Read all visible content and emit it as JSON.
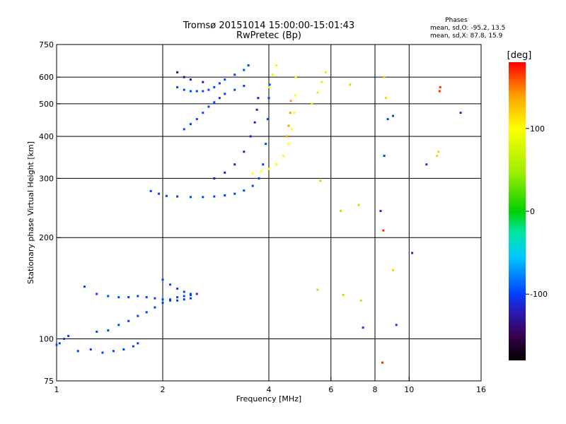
{
  "chart_data": {
    "type": "scatter",
    "title": "Tromsø 20151014 15:00:00-15:01:43",
    "subtitle": "RwPretec (Bp)",
    "stats": {
      "heading": "Phases",
      "line1": "mean, sd,O: -95.2, 13.5",
      "line2": "mean, sd,X:  87.8, 15.9"
    },
    "xlabel": "Frequency [MHz]",
    "ylabel": "Stationary phase Virtual Height [km]",
    "x_scale": "log",
    "y_scale": "log",
    "xlim": [
      1,
      16
    ],
    "ylim": [
      75,
      750
    ],
    "x_ticks": [
      {
        "value": 1,
        "label": "1"
      },
      {
        "value": 2,
        "label": "2"
      },
      {
        "value": 4,
        "label": "4"
      },
      {
        "value": 6,
        "label": "6"
      },
      {
        "value": 8,
        "label": "8"
      },
      {
        "value": 10,
        "label": "10"
      },
      {
        "value": 16,
        "label": "16"
      }
    ],
    "x_gridlines": [
      2,
      4,
      6,
      8,
      10
    ],
    "y_ticks": [
      {
        "value": 75,
        "label": "75"
      },
      {
        "value": 100,
        "label": "100"
      },
      {
        "value": 200,
        "label": "200"
      },
      {
        "value": 300,
        "label": "300"
      },
      {
        "value": 400,
        "label": "400"
      },
      {
        "value": 500,
        "label": "500"
      },
      {
        "value": 600,
        "label": "600"
      },
      {
        "value": 750,
        "label": "750"
      }
    ],
    "y_gridlines": [
      100,
      200,
      300,
      400,
      500,
      600
    ],
    "grid": true,
    "colorbar": {
      "label": "[deg]",
      "min": -180,
      "max": 180,
      "ticks": [
        {
          "value": 100,
          "label": "100"
        },
        {
          "value": 0,
          "label": "0"
        },
        {
          "value": -100,
          "label": "-100"
        }
      ],
      "stops": [
        {
          "value": -180,
          "color": "#000000"
        },
        {
          "value": -150,
          "color": "#3a004d"
        },
        {
          "value": -115,
          "color": "#2222cc"
        },
        {
          "value": -100,
          "color": "#0040ff"
        },
        {
          "value": -55,
          "color": "#00c8ff"
        },
        {
          "value": -25,
          "color": "#00e6a0"
        },
        {
          "value": 0,
          "color": "#00d000"
        },
        {
          "value": 45,
          "color": "#9aee00"
        },
        {
          "value": 100,
          "color": "#ffff00"
        },
        {
          "value": 140,
          "color": "#ffa000"
        },
        {
          "value": 180,
          "color": "#ff0000"
        }
      ]
    },
    "traces": [
      {
        "phase": -100,
        "points": [
          [
            1.0,
            96
          ],
          [
            1.02,
            97
          ],
          [
            1.05,
            100
          ],
          [
            1.08,
            102
          ]
        ]
      },
      {
        "phase": -100,
        "points": [
          [
            1.15,
            92
          ],
          [
            1.25,
            93
          ],
          [
            1.35,
            91
          ],
          [
            1.45,
            92
          ],
          [
            1.55,
            93
          ],
          [
            1.65,
            95
          ],
          [
            1.7,
            97
          ]
        ]
      },
      {
        "phase": -100,
        "points": [
          [
            1.3,
            105
          ],
          [
            1.4,
            106
          ],
          [
            1.5,
            110
          ],
          [
            1.6,
            113
          ],
          [
            1.7,
            117
          ],
          [
            1.8,
            120
          ],
          [
            1.9,
            124
          ],
          [
            2.0,
            128
          ],
          [
            2.1,
            131
          ],
          [
            2.2,
            133
          ],
          [
            2.3,
            134
          ],
          [
            2.4,
            135
          ],
          [
            2.5,
            136
          ]
        ]
      },
      {
        "phase": -100,
        "points": [
          [
            1.2,
            143
          ],
          [
            1.3,
            136
          ],
          [
            1.4,
            134
          ],
          [
            1.5,
            133
          ],
          [
            1.6,
            133
          ],
          [
            1.7,
            134
          ],
          [
            1.8,
            133
          ],
          [
            1.9,
            132
          ],
          [
            2.0,
            131
          ],
          [
            2.1,
            130
          ],
          [
            2.2,
            130
          ],
          [
            2.3,
            131
          ],
          [
            2.4,
            132
          ]
        ]
      },
      {
        "phase": -100,
        "points": [
          [
            2.0,
            150
          ],
          [
            2.1,
            145
          ],
          [
            2.2,
            141
          ],
          [
            2.3,
            138
          ],
          [
            2.4,
            136
          ]
        ]
      },
      {
        "phase": -100,
        "points": [
          [
            1.85,
            275
          ],
          [
            1.95,
            270
          ],
          [
            2.05,
            266
          ],
          [
            2.2,
            265
          ],
          [
            2.4,
            264
          ],
          [
            2.6,
            264
          ],
          [
            2.8,
            265
          ],
          [
            3.0,
            267
          ],
          [
            3.2,
            270
          ],
          [
            3.4,
            276
          ],
          [
            3.6,
            285
          ],
          [
            3.75,
            300
          ],
          [
            3.85,
            330
          ],
          [
            3.92,
            380
          ],
          [
            3.97,
            450
          ],
          [
            4.0,
            520
          ],
          [
            4.02,
            570
          ]
        ]
      },
      {
        "phase": -120,
        "points": [
          [
            2.8,
            300
          ],
          [
            3.0,
            312
          ],
          [
            3.2,
            330
          ],
          [
            3.4,
            360
          ],
          [
            3.55,
            400
          ],
          [
            3.65,
            440
          ],
          [
            3.7,
            480
          ],
          [
            3.73,
            520
          ]
        ]
      },
      {
        "phase": -100,
        "points": [
          [
            2.3,
            420
          ],
          [
            2.4,
            435
          ],
          [
            2.5,
            450
          ],
          [
            2.6,
            470
          ],
          [
            2.7,
            490
          ],
          [
            2.8,
            505
          ],
          [
            2.9,
            520
          ],
          [
            3.0,
            535
          ],
          [
            3.2,
            550
          ],
          [
            3.4,
            565
          ]
        ]
      },
      {
        "phase": -100,
        "points": [
          [
            2.2,
            560
          ],
          [
            2.3,
            550
          ],
          [
            2.4,
            545
          ],
          [
            2.5,
            545
          ],
          [
            2.6,
            545
          ],
          [
            2.7,
            550
          ],
          [
            2.8,
            560
          ],
          [
            2.9,
            575
          ],
          [
            3.0,
            590
          ],
          [
            3.2,
            610
          ],
          [
            3.4,
            630
          ],
          [
            3.5,
            650
          ]
        ]
      },
      {
        "phase": -130,
        "points": [
          [
            2.2,
            620
          ],
          [
            2.3,
            600
          ],
          [
            2.4,
            590
          ],
          [
            2.6,
            580
          ]
        ]
      },
      {
        "phase": 100,
        "points": [
          [
            3.6,
            310
          ],
          [
            3.8,
            315
          ],
          [
            4.0,
            320
          ],
          [
            4.2,
            330
          ],
          [
            4.4,
            350
          ],
          [
            4.55,
            380
          ],
          [
            4.65,
            420
          ],
          [
            4.72,
            470
          ],
          [
            4.75,
            530
          ],
          [
            4.77,
            600
          ]
        ]
      },
      {
        "phase": 90,
        "points": [
          [
            4.0,
            560
          ],
          [
            4.1,
            610
          ],
          [
            4.2,
            650
          ]
        ]
      },
      {
        "phase": 140,
        "points": [
          [
            4.5,
            400
          ],
          [
            4.55,
            430
          ],
          [
            4.6,
            470
          ],
          [
            4.62,
            510
          ]
        ]
      },
      {
        "phase": 80,
        "points": [
          [
            5.3,
            500
          ],
          [
            5.5,
            540
          ],
          [
            5.65,
            580
          ],
          [
            5.8,
            620
          ]
        ]
      },
      {
        "phase": -110,
        "points": [
          [
            7.4,
            108
          ],
          [
            8.3,
            240
          ]
        ]
      },
      {
        "phase": -100,
        "points": [
          [
            8.5,
            350
          ],
          [
            8.7,
            450
          ],
          [
            9.0,
            460
          ],
          [
            9.2,
            110
          ]
        ]
      },
      {
        "phase": 120,
        "points": [
          [
            8.5,
            600
          ],
          [
            8.6,
            520
          ],
          [
            9.0,
            160
          ],
          [
            12.0,
            350
          ],
          [
            12.1,
            360
          ]
        ]
      },
      {
        "phase": 170,
        "points": [
          [
            8.4,
            85
          ],
          [
            8.45,
            210
          ],
          [
            12.2,
            545
          ],
          [
            12.25,
            560
          ]
        ]
      },
      {
        "phase": -110,
        "points": [
          [
            10.2,
            180
          ],
          [
            11.2,
            330
          ],
          [
            14.0,
            470
          ]
        ]
      },
      {
        "phase": 50,
        "points": [
          [
            6.4,
            240
          ],
          [
            7.2,
            250
          ],
          [
            6.5,
            135
          ],
          [
            7.3,
            130
          ],
          [
            5.6,
            295
          ],
          [
            6.8,
            570
          ],
          [
            5.5,
            140
          ]
        ]
      }
    ]
  }
}
